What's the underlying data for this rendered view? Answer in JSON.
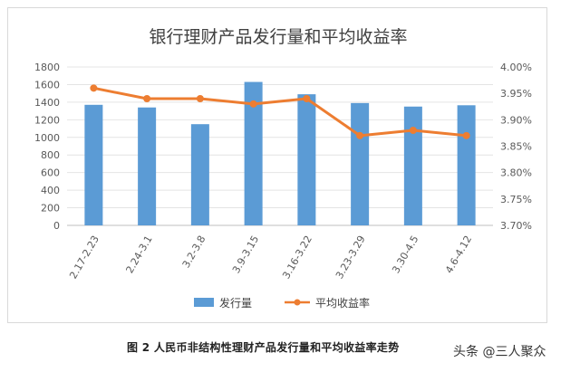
{
  "chart_data": {
    "type": "bar+line",
    "title": "银行理财产品发行量和平均收益率",
    "categories": [
      "2.17-2.23",
      "2.24-3.1",
      "3.2-3.8",
      "3.9-3.15",
      "3.16-3.22",
      "3.23-3.29",
      "3.30-4.5",
      "4.6-4.12"
    ],
    "series": [
      {
        "name": "发行量",
        "type": "bar",
        "axis": "left",
        "color": "#5b9bd5",
        "values": [
          1370,
          1340,
          1150,
          1630,
          1490,
          1390,
          1350,
          1365
        ]
      },
      {
        "name": "平均收益率",
        "type": "line",
        "axis": "right",
        "color": "#ed7d31",
        "values": [
          3.96,
          3.94,
          3.94,
          3.93,
          3.94,
          3.87,
          3.88,
          3.87
        ]
      }
    ],
    "y_left": {
      "min": 0,
      "max": 1800,
      "step": 200
    },
    "y_right": {
      "min": 3.7,
      "max": 4.0,
      "step": 0.05,
      "format": "percent2"
    },
    "legend_position": "bottom",
    "grid": true
  },
  "caption": "图 2 人民币非结构性理财产品发行量和平均收益率走势",
  "watermark": "头条 @三人聚众"
}
